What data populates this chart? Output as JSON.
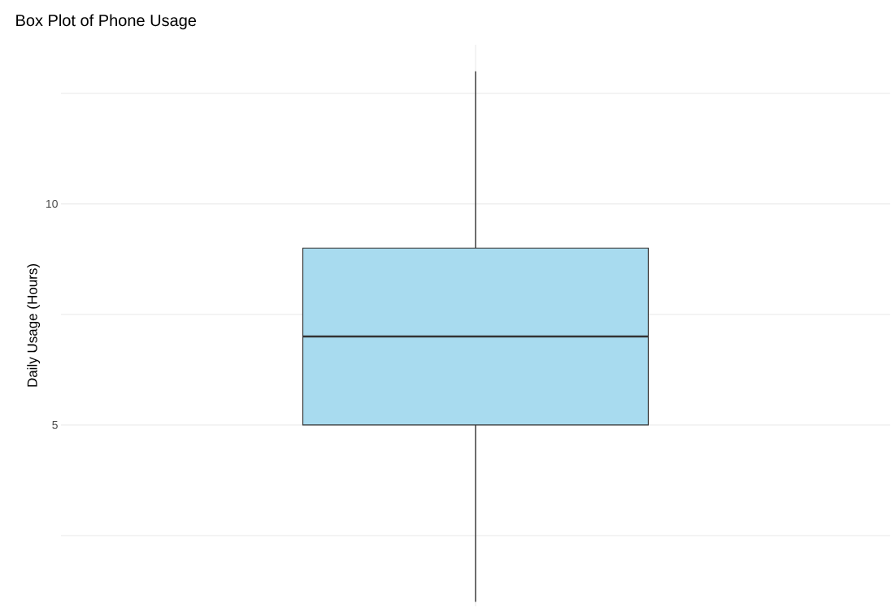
{
  "chart_data": {
    "type": "box",
    "title": "Box Plot of Phone Usage",
    "ylabel": "Daily Usage (Hours)",
    "categories": [
      null
    ],
    "boxes": [
      {
        "low": 1,
        "q1": 5,
        "median": 7,
        "q3": 9,
        "high": 13
      }
    ],
    "color": "#a8dbef",
    "ylim": [
      0.9,
      13.6
    ],
    "yticks": [
      {
        "value": 2.5,
        "label": null
      },
      5,
      {
        "value": 7.5,
        "label": null
      },
      10,
      {
        "value": 12.5,
        "label": null
      }
    ],
    "grid": true
  }
}
